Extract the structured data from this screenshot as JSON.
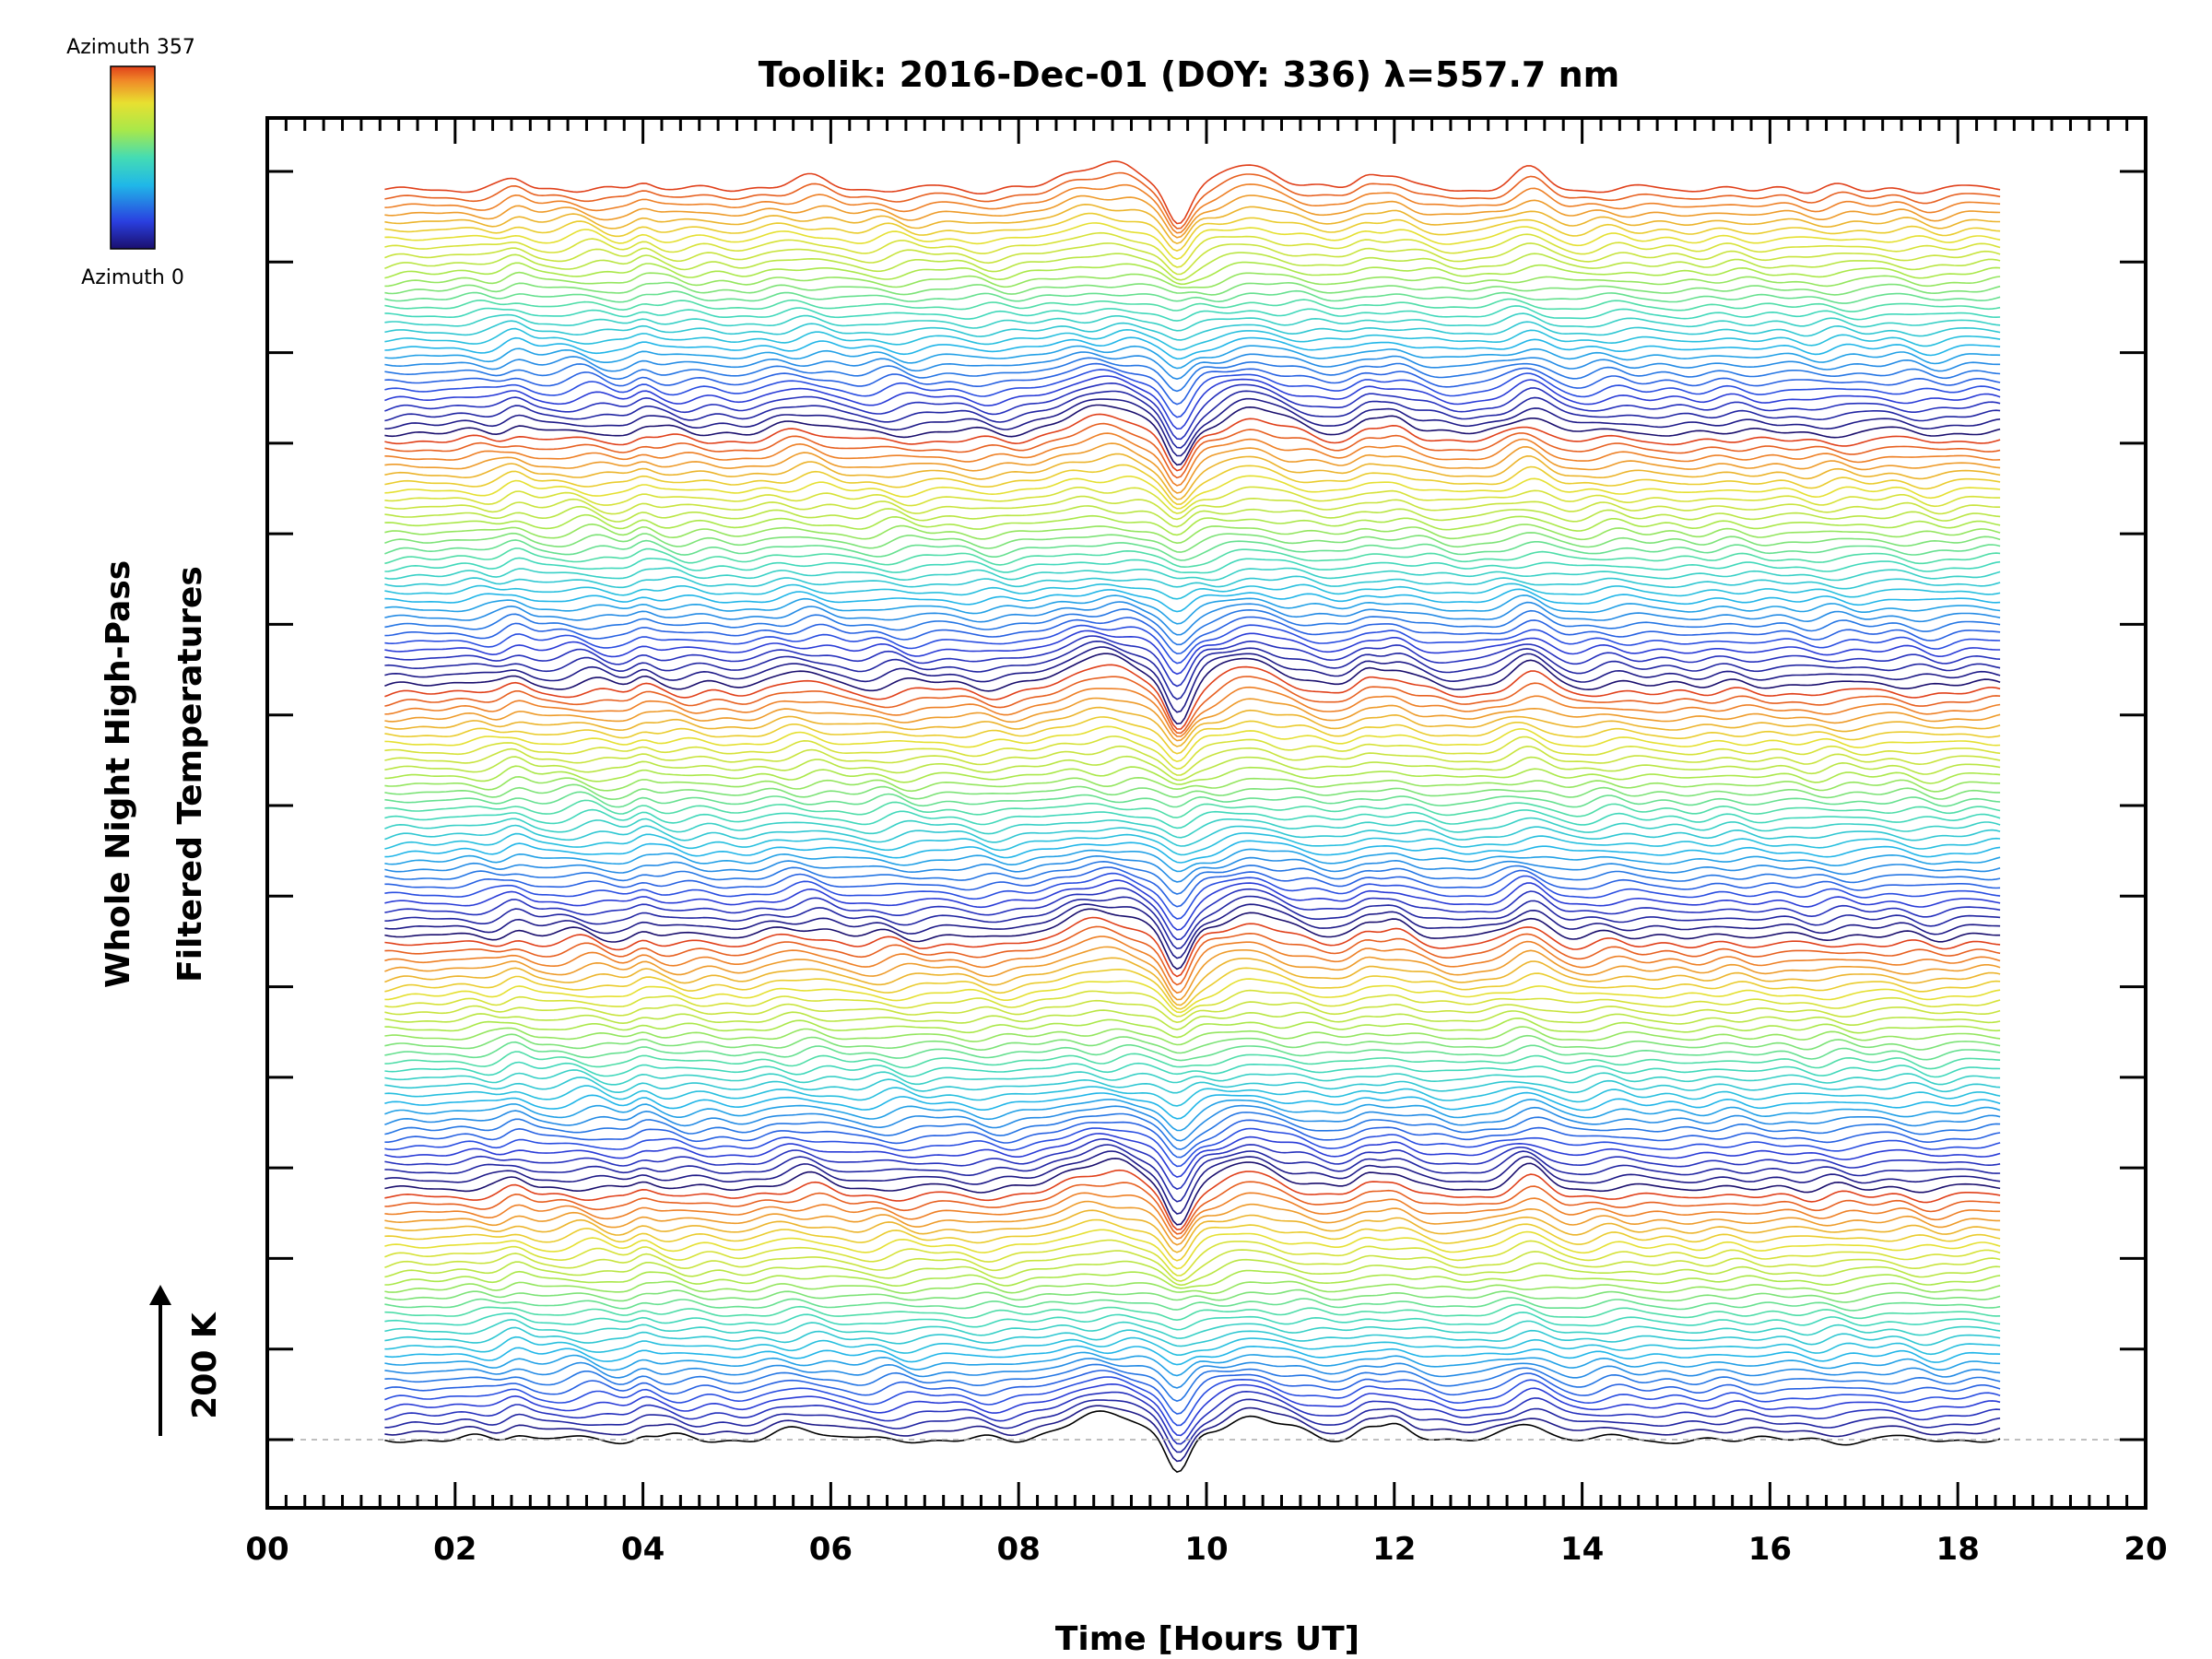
{
  "chart_data": {
    "type": "line",
    "title": "Toolik: 2016-Dec-01 (DOY: 336) λ=557.7 nm",
    "xlabel": "Time [Hours UT]",
    "ylabel_line1": "Whole Night High-Pass",
    "ylabel_line2": "Filtered Temperatures",
    "xlim": [
      0,
      20
    ],
    "x_tick_labels": [
      "00",
      "02",
      "04",
      "06",
      "08",
      "10",
      "12",
      "14",
      "16",
      "18",
      "20"
    ],
    "x_tick_values": [
      0,
      2,
      4,
      6,
      8,
      10,
      12,
      14,
      16,
      18,
      20
    ],
    "data_time_range_hours": [
      1.25,
      18.45
    ],
    "y_major_ticks": 15,
    "scale_bar_label": "200 K",
    "scale_bar_kelvin": 200,
    "num_traces": 150,
    "colorbar": {
      "top_label": "Azimuth 357",
      "bottom_label": "Azimuth 0",
      "colormap": "rainbow",
      "range_degrees": [
        0,
        357
      ]
    },
    "colors": {
      "azimuth_0": "#1a0f6e",
      "azimuth_mid": "#44dcb4",
      "azimuth_357": "#e0401a",
      "baseline": "#aaaaaa"
    },
    "features": [
      {
        "t": 8.9,
        "description_value": 150
      },
      {
        "t": 9.7,
        "description_value": -90
      },
      {
        "t": 10.5,
        "description_value": 100
      }
    ]
  }
}
